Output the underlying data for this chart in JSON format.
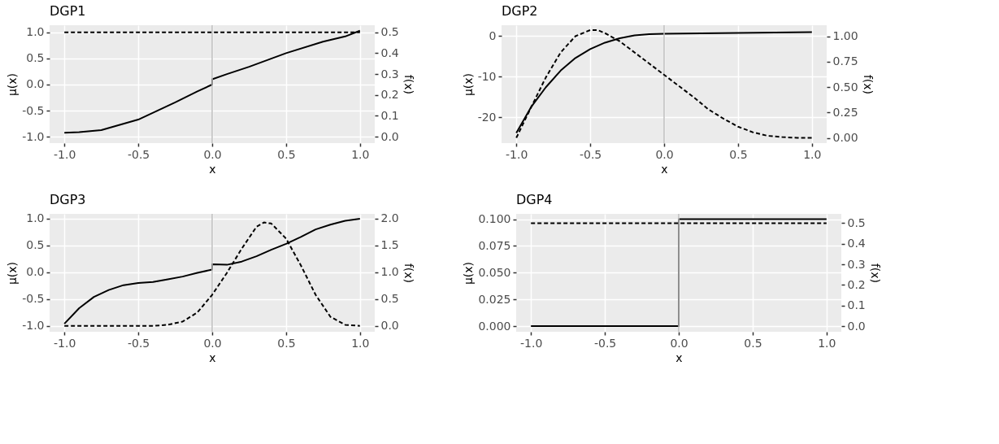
{
  "chart_data": [
    {
      "type": "line",
      "title": "DGP1",
      "xlabel": "x",
      "ylabel": "μ(x)",
      "y2label": "f(x)",
      "grid": true,
      "xlim": [
        -1.1,
        1.1
      ],
      "xticks": [
        {
          "value": -1,
          "label": "-1.0"
        },
        {
          "value": -0.5,
          "label": "-0.5"
        },
        {
          "value": 0,
          "label": "0.0"
        },
        {
          "value": 0.5,
          "label": "0.5"
        },
        {
          "value": 1,
          "label": "1.0"
        }
      ],
      "ylim": [
        -1.12,
        1.135
      ],
      "yticks": [
        {
          "value": -1,
          "label": "-1.0"
        },
        {
          "value": -0.5,
          "label": "-0.5"
        },
        {
          "value": 0,
          "label": "0.0"
        },
        {
          "value": 0.5,
          "label": "0.5"
        },
        {
          "value": 1,
          "label": "1.0"
        }
      ],
      "y2lim": [
        -0.031,
        0.534
      ],
      "y2ticks": [
        {
          "value": 0,
          "label": "0.0"
        },
        0.1,
        0.2,
        0.3,
        0.4,
        0.5
      ],
      "ref_lines": [
        {
          "axis": "x",
          "value": 0,
          "color": "#bebebe"
        }
      ],
      "series": [
        {
          "color": "#000000",
          "line_style": "solid",
          "x": [
            -1,
            -0.9,
            -0.75,
            -0.5,
            -0.25,
            -0.1,
            0,
            0,
            0.1,
            0.25,
            0.5,
            0.75,
            0.9,
            1
          ],
          "values": [
            -0.92,
            -0.91,
            -0.87,
            -0.67,
            -0.34,
            -0.13,
            0,
            0.1,
            0.2,
            0.34,
            0.6,
            0.82,
            0.92,
            1.03
          ]
        },
        {
          "axis": "y2",
          "color": "#000000",
          "line_style": "dashed",
          "x": [
            -1,
            1
          ],
          "values": [
            0.5,
            0.5
          ]
        }
      ]
    },
    {
      "type": "line",
      "title": "DGP2",
      "xlabel": "x",
      "ylabel": "μ(x)",
      "y2label": "f(x)",
      "grid": true,
      "xlim": [
        -1.1,
        1.1
      ],
      "xticks": [
        {
          "value": -1,
          "label": "-1.0"
        },
        {
          "value": -0.5,
          "label": "-0.5"
        },
        {
          "value": 0,
          "label": "0.0"
        },
        {
          "value": 0.5,
          "label": "0.5"
        },
        {
          "value": 1,
          "label": "1.0"
        }
      ],
      "ylim": [
        -26.4,
        2.7
      ],
      "yticks": [
        -20,
        -10,
        0
      ],
      "y2lim": [
        -0.052,
        1.108
      ],
      "y2ticks": [
        {
          "value": 0,
          "label": "0.00"
        },
        0.25,
        {
          "value": 0.5,
          "label": "0.50"
        },
        0.75,
        {
          "value": 1,
          "label": "1.00"
        }
      ],
      "ref_lines": [
        {
          "axis": "x",
          "value": 0,
          "color": "#bebebe"
        }
      ],
      "series": [
        {
          "color": "#000000",
          "line_style": "solid",
          "x": [
            -1,
            -0.9,
            -0.8,
            -0.7,
            -0.6,
            -0.5,
            -0.4,
            -0.3,
            -0.2,
            -0.1,
            0,
            0.5,
            1
          ],
          "values": [
            -23.9,
            -17.5,
            -12.6,
            -8.5,
            -5.4,
            -3.2,
            -1.6,
            -0.5,
            0.2,
            0.5,
            0.6,
            0.8,
            1.0
          ]
        },
        {
          "axis": "y2",
          "color": "#000000",
          "line_style": "dashed",
          "x": [
            -1,
            -0.9,
            -0.8,
            -0.7,
            -0.6,
            -0.5,
            -0.45,
            -0.4,
            -0.3,
            -0.2,
            -0.1,
            0,
            0.1,
            0.2,
            0.3,
            0.4,
            0.5,
            0.6,
            0.7,
            0.8,
            0.9,
            1
          ],
          "values": [
            0,
            0.3,
            0.595,
            0.84,
            1.0,
            1.06,
            1.06,
            1.03,
            0.95,
            0.84,
            0.73,
            0.62,
            0.51,
            0.4,
            0.28,
            0.19,
            0.11,
            0.055,
            0.02,
            0.007,
            0,
            0
          ]
        }
      ]
    },
    {
      "type": "line",
      "title": "DGP3",
      "xlabel": "x",
      "ylabel": "μ(x)",
      "y2label": "f(x)",
      "grid": true,
      "xlim": [
        -1.1,
        1.1
      ],
      "xticks": [
        {
          "value": -1,
          "label": "-1.0"
        },
        {
          "value": -0.5,
          "label": "-0.5"
        },
        {
          "value": 0,
          "label": "0.0"
        },
        {
          "value": 0.5,
          "label": "0.5"
        },
        {
          "value": 1,
          "label": "1.0"
        }
      ],
      "ylim": [
        -1.11,
        1.09
      ],
      "yticks": [
        {
          "value": -1,
          "label": "-1.0"
        },
        {
          "value": -0.5,
          "label": "-0.5"
        },
        {
          "value": 0,
          "label": "0.0"
        },
        {
          "value": 0.5,
          "label": "0.5"
        },
        {
          "value": 1,
          "label": "1.0"
        }
      ],
      "y2lim": [
        -0.11,
        2.09
      ],
      "y2ticks": [
        {
          "value": 0,
          "label": "0.0"
        },
        0.5,
        {
          "value": 1,
          "label": "1.0"
        },
        1.5,
        {
          "value": 2,
          "label": "2.0"
        }
      ],
      "ref_lines": [
        {
          "axis": "x",
          "value": 0,
          "color": "#bebebe"
        }
      ],
      "series": [
        {
          "color": "#000000",
          "line_style": "solid",
          "x": [
            -1,
            -0.9,
            -0.8,
            -0.7,
            -0.6,
            -0.5,
            -0.4,
            -0.3,
            -0.2,
            -0.1,
            0,
            0,
            0.1,
            0.2,
            0.3,
            0.4,
            0.5,
            0.6,
            0.7,
            0.8,
            0.9,
            1
          ],
          "values": [
            -0.96,
            -0.67,
            -0.46,
            -0.33,
            -0.24,
            -0.2,
            -0.18,
            -0.13,
            -0.08,
            -0.01,
            0.05,
            0.15,
            0.14,
            0.2,
            0.3,
            0.42,
            0.53,
            0.66,
            0.8,
            0.89,
            0.96,
            1.0
          ]
        },
        {
          "axis": "y2",
          "color": "#000000",
          "line_style": "dashed",
          "x": [
            -1,
            -0.5,
            -0.4,
            -0.3,
            -0.2,
            -0.1,
            0,
            0.1,
            0.2,
            0.3,
            0.35,
            0.4,
            0.5,
            0.6,
            0.7,
            0.8,
            0.9,
            1
          ],
          "values": [
            0,
            0,
            0,
            0.02,
            0.08,
            0.25,
            0.58,
            0.99,
            1.44,
            1.85,
            1.93,
            1.91,
            1.63,
            1.13,
            0.58,
            0.17,
            0.02,
            0
          ]
        }
      ]
    },
    {
      "type": "line",
      "title": "DGP4",
      "xlabel": "x",
      "ylabel": "μ(x)",
      "y2label": "f(x)",
      "grid": true,
      "xlim": [
        -1.1,
        1.1
      ],
      "xticks": [
        {
          "value": -1,
          "label": "-1.0"
        },
        {
          "value": -0.5,
          "label": "-0.5"
        },
        {
          "value": 0,
          "label": "0.0"
        },
        {
          "value": 0.5,
          "label": "0.5"
        },
        {
          "value": 1,
          "label": "1.0"
        }
      ],
      "ylim": [
        -0.0053,
        0.105
      ],
      "yticks": [
        {
          "value": 0,
          "label": "0.000"
        },
        {
          "value": 0.025,
          "label": "0.025"
        },
        {
          "value": 0.05,
          "label": "0.050"
        },
        {
          "value": 0.075,
          "label": "0.075"
        },
        {
          "value": 0.1,
          "label": "0.100"
        }
      ],
      "y2lim": [
        -0.027,
        0.545
      ],
      "y2ticks": [
        {
          "value": 0,
          "label": "0.0"
        },
        0.1,
        0.2,
        0.3,
        0.4,
        0.5
      ],
      "ref_lines": [
        {
          "axis": "x",
          "value": 0,
          "color": "#bebebe"
        }
      ],
      "series": [
        {
          "color": "#000000",
          "line_style": "solid",
          "x": [
            -1,
            0,
            0,
            1
          ],
          "values": [
            0,
            0,
            0.1,
            0.1
          ]
        },
        {
          "axis": "y2",
          "color": "#000000",
          "line_style": "dashed",
          "x": [
            -1,
            1
          ],
          "values": [
            0.5,
            0.5
          ]
        }
      ]
    }
  ]
}
